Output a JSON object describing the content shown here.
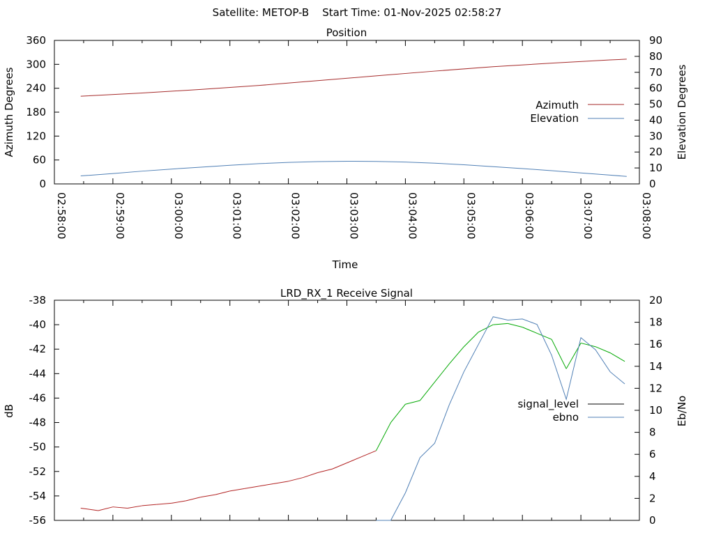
{
  "header": {
    "title": "Satellite: METOP-B    Start Time: 01-Nov-2025 02:58:27"
  },
  "colors": {
    "azimuth": "#a52a2a",
    "elevation": "#4f7fb5",
    "signal_level": "#000000",
    "signal_low": "#b22222",
    "signal_high": "#00a800",
    "ebno": "#4f7fb5",
    "axis": "#000000",
    "background": "#ffffff"
  },
  "chart_data": [
    {
      "id": "position",
      "type": "line",
      "title": "Position",
      "xlabel": "Time",
      "ylabel_left": "Azimuth Degrees",
      "ylabel_right": "Elevation Degrees",
      "xlim": [
        "02:58:00",
        "03:08:00"
      ],
      "ylim_left": [
        0,
        360
      ],
      "ylim_right": [
        0,
        90
      ],
      "xticks": [
        "02:58:00",
        "02:59:00",
        "03:00:00",
        "03:01:00",
        "03:02:00",
        "03:03:00",
        "03:04:00",
        "03:05:00",
        "03:06:00",
        "03:07:00",
        "03:08:00"
      ],
      "yticks_left": [
        0,
        60,
        120,
        180,
        240,
        300,
        360
      ],
      "yticks_right": [
        0,
        10,
        20,
        30,
        40,
        50,
        60,
        70,
        80,
        90
      ],
      "grid": false,
      "legend_position": "right",
      "series": [
        {
          "name": "Azimuth",
          "axis": "left",
          "x": [
            "02:58:27",
            "02:59:30",
            "03:00:30",
            "03:01:30",
            "03:02:30",
            "03:03:30",
            "03:04:30",
            "03:05:30",
            "03:06:30",
            "03:07:30",
            "03:07:47"
          ],
          "values": [
            220,
            228,
            237,
            247,
            259,
            271,
            283,
            294,
            303,
            311,
            313
          ]
        },
        {
          "name": "Elevation",
          "axis": "right",
          "x": [
            "02:58:27",
            "02:59:00",
            "02:59:30",
            "03:00:00",
            "03:00:30",
            "03:01:00",
            "03:01:30",
            "03:02:00",
            "03:02:30",
            "03:03:00",
            "03:03:30",
            "03:04:00",
            "03:04:30",
            "03:05:00",
            "03:05:30",
            "03:06:00",
            "03:06:30",
            "03:07:00",
            "03:07:30",
            "03:07:47"
          ],
          "values": [
            5,
            6.5,
            8,
            9.3,
            10.5,
            11.7,
            12.7,
            13.5,
            14,
            14.2,
            14.1,
            13.7,
            13,
            12,
            10.8,
            9.6,
            8.3,
            6.9,
            5.5,
            4.7
          ]
        }
      ]
    },
    {
      "id": "receive-signal",
      "type": "line",
      "title": "LRD_RX_1 Receive Signal",
      "ylabel_left": "dB",
      "ylabel_right": "Eb/No",
      "xlim": [
        "02:58:00",
        "03:08:00"
      ],
      "ylim_left": [
        -56,
        -38
      ],
      "ylim_right": [
        0,
        20
      ],
      "yticks_left": [
        -56,
        -54,
        -52,
        -50,
        -48,
        -46,
        -44,
        -42,
        -40,
        -38
      ],
      "yticks_right": [
        0,
        2,
        4,
        6,
        8,
        10,
        12,
        14,
        16,
        18,
        20
      ],
      "grid": false,
      "legend_position": "right",
      "series": [
        {
          "name": "signal_level",
          "axis": "left",
          "x": [
            "02:58:27",
            "02:58:45",
            "02:59:00",
            "02:59:15",
            "02:59:30",
            "02:59:45",
            "03:00:00",
            "03:00:15",
            "03:00:30",
            "03:00:45",
            "03:01:00",
            "03:01:15",
            "03:01:30",
            "03:01:45",
            "03:02:00",
            "03:02:15",
            "03:02:30",
            "03:02:45",
            "03:03:00",
            "03:03:15",
            "03:03:30",
            "03:03:45",
            "03:04:00",
            "03:04:15",
            "03:04:30",
            "03:04:45",
            "03:05:00",
            "03:05:15",
            "03:05:30",
            "03:05:45",
            "03:06:00",
            "03:06:15",
            "03:06:30",
            "03:06:45",
            "03:07:00",
            "03:07:15",
            "03:07:30",
            "03:07:45"
          ],
          "values": [
            -55.0,
            -55.2,
            -54.9,
            -55.0,
            -54.8,
            -54.7,
            -54.6,
            -54.4,
            -54.1,
            -53.9,
            -53.6,
            -53.4,
            -53.2,
            -53.0,
            -52.8,
            -52.5,
            -52.1,
            -51.8,
            -51.3,
            -50.8,
            -50.3,
            -48.0,
            -46.5,
            -46.2,
            -44.7,
            -43.2,
            -41.8,
            -40.6,
            -40.0,
            -39.9,
            -40.2,
            -40.7,
            -41.2,
            -43.6,
            -41.5,
            -41.8,
            -42.3,
            -43.0
          ]
        },
        {
          "name": "ebno",
          "axis": "right",
          "x": [
            "03:03:30",
            "03:03:45",
            "03:04:00",
            "03:04:15",
            "03:04:30",
            "03:04:45",
            "03:05:00",
            "03:05:15",
            "03:05:30",
            "03:05:45",
            "03:06:00",
            "03:06:15",
            "03:06:30",
            "03:06:45",
            "03:07:00",
            "03:07:15",
            "03:07:30",
            "03:07:45"
          ],
          "values": [
            0,
            0,
            2.5,
            5.7,
            7.0,
            10.5,
            13.5,
            16.0,
            18.5,
            18.2,
            18.3,
            17.8,
            15.0,
            11.0,
            16.6,
            15.5,
            13.5,
            12.4
          ]
        }
      ]
    }
  ]
}
